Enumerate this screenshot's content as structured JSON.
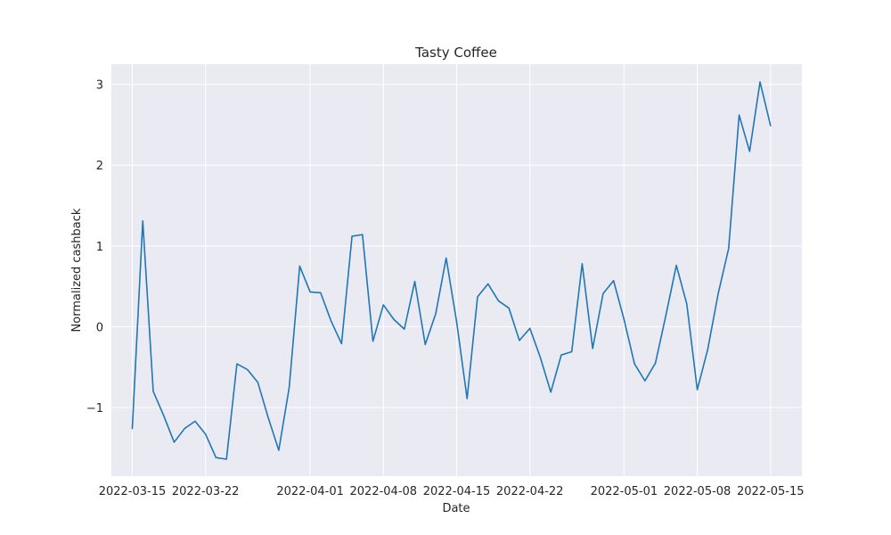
{
  "colors": {
    "plot_background": "#eaeaf2",
    "grid": "#ffffff",
    "series": "#1f77b4",
    "text": "#262626"
  },
  "chart_data": {
    "type": "line",
    "title": "Tasty Coffee",
    "xlabel": "Date",
    "ylabel": "Normalized cashback",
    "x_scale": "date",
    "xlim": [
      "2022-03-13",
      "2022-05-18"
    ],
    "ylim": [
      -1.85,
      3.25
    ],
    "grid": true,
    "legend": "none",
    "x_ticks": [
      "2022-03-15",
      "2022-03-22",
      "2022-04-01",
      "2022-04-08",
      "2022-04-15",
      "2022-04-22",
      "2022-05-01",
      "2022-05-08",
      "2022-05-15"
    ],
    "y_ticks": [
      {
        "value": -1,
        "label": "−1"
      },
      {
        "value": 0,
        "label": "0"
      },
      {
        "value": 1,
        "label": "1"
      },
      {
        "value": 2,
        "label": "2"
      },
      {
        "value": 3,
        "label": "3"
      }
    ],
    "series": [
      {
        "x": [
          "2022-03-15",
          "2022-03-16",
          "2022-03-17",
          "2022-03-18",
          "2022-03-19",
          "2022-03-20",
          "2022-03-21",
          "2022-03-22",
          "2022-03-23",
          "2022-03-24",
          "2022-03-25",
          "2022-03-26",
          "2022-03-27",
          "2022-03-28",
          "2022-03-29",
          "2022-03-30",
          "2022-03-31",
          "2022-04-01",
          "2022-04-02",
          "2022-04-03",
          "2022-04-04",
          "2022-04-05",
          "2022-04-06",
          "2022-04-07",
          "2022-04-08",
          "2022-04-09",
          "2022-04-10",
          "2022-04-11",
          "2022-04-12",
          "2022-04-13",
          "2022-04-14",
          "2022-04-15",
          "2022-04-16",
          "2022-04-17",
          "2022-04-18",
          "2022-04-19",
          "2022-04-20",
          "2022-04-21",
          "2022-04-22",
          "2022-04-23",
          "2022-04-24",
          "2022-04-25",
          "2022-04-26",
          "2022-04-27",
          "2022-04-28",
          "2022-04-29",
          "2022-04-30",
          "2022-05-01",
          "2022-05-02",
          "2022-05-03",
          "2022-05-04",
          "2022-05-05",
          "2022-05-06",
          "2022-05-07",
          "2022-05-08",
          "2022-05-09",
          "2022-05-10",
          "2022-05-11",
          "2022-05-12",
          "2022-05-13",
          "2022-05-14",
          "2022-05-15"
        ],
        "y": [
          -1.26,
          1.31,
          -0.8,
          -1.1,
          -1.43,
          -1.26,
          -1.17,
          -1.33,
          -1.62,
          -1.64,
          -0.46,
          -0.53,
          -0.69,
          -1.13,
          -1.53,
          -0.75,
          0.75,
          0.43,
          0.42,
          0.07,
          -0.21,
          1.12,
          1.14,
          -0.18,
          0.27,
          0.09,
          -0.03,
          0.56,
          -0.22,
          0.16,
          0.85,
          0.06,
          -0.89,
          0.37,
          0.53,
          0.32,
          0.23,
          -0.17,
          -0.02,
          -0.38,
          -0.81,
          -0.35,
          -0.31,
          0.78,
          -0.27,
          0.41,
          0.57,
          0.09,
          -0.46,
          -0.67,
          -0.45,
          0.14,
          0.76,
          0.28,
          -0.78,
          -0.28,
          0.41,
          0.97,
          2.62,
          2.17,
          3.03,
          2.49
        ]
      }
    ]
  }
}
